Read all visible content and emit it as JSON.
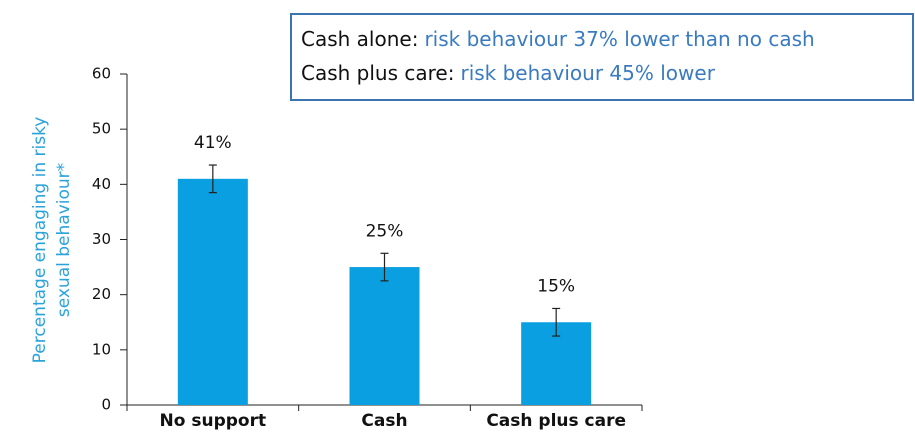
{
  "chart_data": {
    "type": "bar",
    "y_label": [
      "Percentage engaging in risky",
      "sexual behaviour*"
    ],
    "categories": [
      "No support",
      "Cash",
      "Cash plus care"
    ],
    "values": [
      41,
      25,
      15
    ],
    "value_labels": [
      "41%",
      "25%",
      "15%"
    ],
    "errors": [
      2.5,
      2.5,
      2.5
    ],
    "color": "#0a9fe0",
    "ylim": [
      0,
      60
    ],
    "yticks": [
      0,
      10,
      20,
      30,
      40,
      50,
      60
    ],
    "annotations": [
      {
        "label": "Cash alone:",
        "text": "risk behaviour 37% lower than no cash"
      },
      {
        "label": "Cash plus care:",
        "text": "risk behaviour 45% lower"
      }
    ]
  }
}
